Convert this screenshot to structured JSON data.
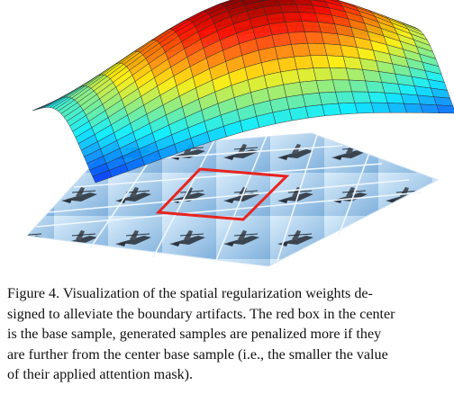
{
  "figure": {
    "description_icon": "surface-plot-over-tiled-airplane-samples",
    "colors": {
      "sky_light": "#cfe6f7",
      "sky_dark": "#7fb4df",
      "grid_line": "#e8f2fb",
      "red_box": "#e8231f",
      "surface_low": "#1c2ca8",
      "surface_high": "#d81b16"
    }
  },
  "caption": {
    "lines": [
      "Figure 4.  Visualization of the spatial regularization weights de-",
      "signed to alleviate the boundary artifacts. The red box in the center",
      "is the base sample, generated samples are penalized more if they",
      "are further from the center base sample (i.e., the smaller the value",
      "of their applied attention mask)."
    ]
  }
}
